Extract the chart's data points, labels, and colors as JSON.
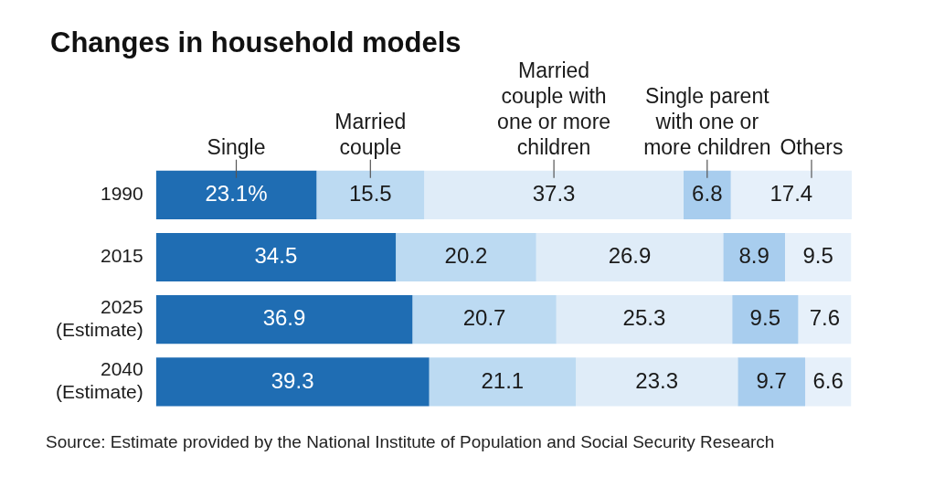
{
  "chart_data": {
    "type": "bar",
    "orientation": "horizontal",
    "stacked": true,
    "title": "Changes in household models",
    "categories": [
      "1990",
      "2015",
      "2025\n(Estimate)",
      "2040\n(Estimate)"
    ],
    "series": [
      {
        "name": "Single",
        "color": "#1f6db3",
        "values": [
          23.1,
          34.5,
          36.9,
          39.3
        ],
        "value_labels": [
          "23.1%",
          "34.5",
          "36.9",
          "39.3"
        ]
      },
      {
        "name": "Married couple",
        "color": "#bcdaf2",
        "values": [
          15.5,
          20.2,
          20.7,
          21.1
        ],
        "value_labels": [
          "15.5",
          "20.2",
          "20.7",
          "21.1"
        ]
      },
      {
        "name": "Married couple with one or more children",
        "color": "#dfecf8",
        "values": [
          37.3,
          26.9,
          25.3,
          23.3
        ],
        "value_labels": [
          "37.3",
          "26.9",
          "25.3",
          "23.3"
        ]
      },
      {
        "name": "Single parent with one or more children",
        "color": "#a8cdee",
        "values": [
          6.8,
          8.9,
          9.5,
          9.7
        ],
        "value_labels": [
          "6.8",
          "8.9",
          "9.5",
          "9.7"
        ]
      },
      {
        "name": "Others",
        "color": "#e6f0fa",
        "values": [
          17.4,
          9.5,
          7.6,
          6.6
        ],
        "value_labels": [
          "17.4",
          "9.5",
          "7.6",
          "6.6"
        ]
      }
    ],
    "legend": "top",
    "grid": false,
    "tick_labels": "y",
    "annotations": [
      "Source: Estimate provided by the National Institute of Population and Social Security Research"
    ]
  }
}
